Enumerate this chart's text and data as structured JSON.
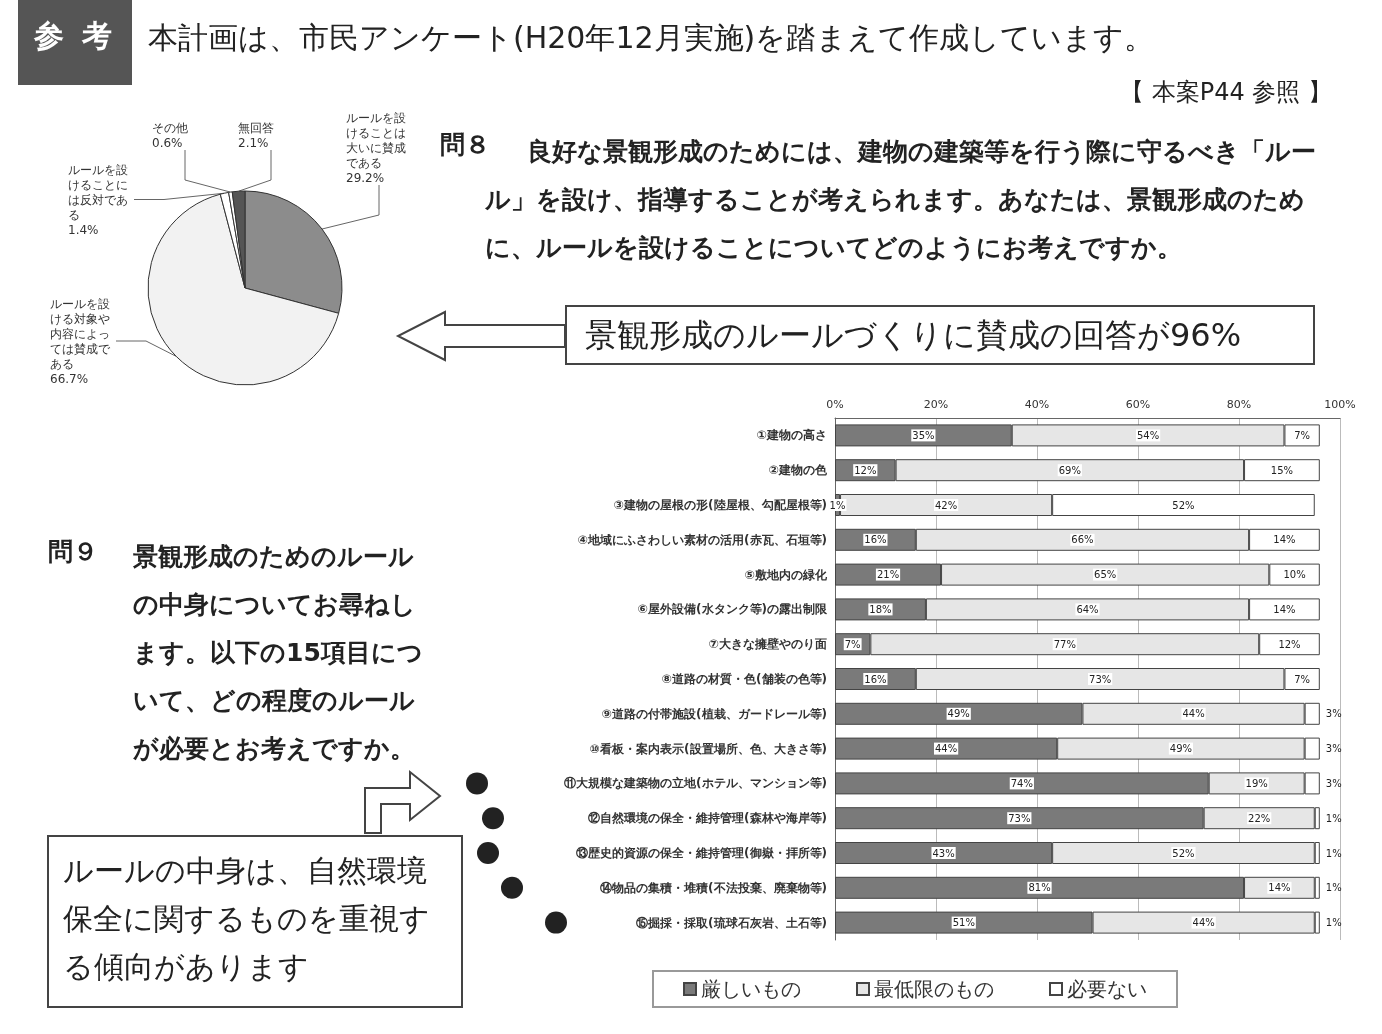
{
  "chart_data": [
    {
      "type": "pie",
      "categories": [
        "ルールを設けることは大いに賛成である",
        "ルールを設ける対象や内容によっては賛成である",
        "ルールを設けることには反対である",
        "その他",
        "無回答"
      ],
      "values": [
        29.2,
        66.7,
        1.4,
        0.6,
        2.1
      ],
      "value_labels": [
        "29.2%",
        "66.7%",
        "1.4%",
        "0.6%",
        "2.1%"
      ],
      "colors": [
        "#8c8c8c",
        "#f2f2f2",
        "#ffffff",
        "#ffffff",
        "#555555"
      ],
      "annotations": [
        "参 考",
        "本計画は、市民アンケート(H20年12月実施)を踏まえて作成しています。",
        "【 本案P44 参照 】",
        "問８",
        "良好な景観形成のためには、建物の建築等を行う際に守るべき「ルール」を設け、指導することが考えられます。あなたは、景観形成のために、ルールを設けることについてどのようにお考えですか。",
        "景観形成のルールづくりに賛成の回答が96%"
      ]
    },
    {
      "type": "bar",
      "orientation": "horizontal",
      "stacked": true,
      "categories": [
        "①建物の高さ",
        "②建物の色",
        "③建物の屋根の形(陸屋根、勾配屋根等)",
        "④地域にふさわしい素材の活用(赤瓦、石垣等)",
        "⑤敷地内の緑化",
        "⑥屋外設備(水タンク等)の露出制限",
        "⑦大きな擁壁やのり面",
        "⑧道路の材質・色(舗装の色等)",
        "⑨道路の付帯施設(植栽、ガードレール等)",
        "⑩看板・案内表示(設置場所、色、大きさ等)",
        "⑪大規模な建築物の立地(ホテル、マンション等)",
        "⑫自然環境の保全・維持管理(森林や海岸等)",
        "⑬歴史的資源の保全・維持管理(御嶽・拝所等)",
        "⑭物品の集積・堆積(不法投棄、廃棄物等)",
        "⑮掘採・採取(琉球石灰岩、土石等)"
      ],
      "series": [
        {
          "name": "厳しいもの",
          "color": "#7a7a7a",
          "values": [
            35,
            12,
            1,
            16,
            21,
            18,
            7,
            16,
            49,
            44,
            74,
            73,
            43,
            81,
            51
          ],
          "value_labels": [
            "35%",
            "12%",
            "1%",
            "16%",
            "21%",
            "18%",
            "7%",
            "16%",
            "49%",
            "44%",
            "74%",
            "73%",
            "43%",
            "81%",
            "51%"
          ]
        },
        {
          "name": "最低限のもの",
          "color": "#e6e6e6",
          "values": [
            54,
            69,
            42,
            66,
            65,
            64,
            77,
            73,
            44,
            49,
            19,
            22,
            52,
            14,
            44
          ],
          "value_labels": [
            "54%",
            "69%",
            "42%",
            "66%",
            "65%",
            "64%",
            "77%",
            "73%",
            "44%",
            "49%",
            "19%",
            "22%",
            "52%",
            "14%",
            "44%"
          ]
        },
        {
          "name": "必要ない",
          "color": "#ffffff",
          "values": [
            7,
            15,
            52,
            14,
            10,
            14,
            12,
            7,
            3,
            3,
            3,
            1,
            1,
            1,
            1
          ],
          "value_labels": [
            "7%",
            "15%",
            "52%",
            "14%",
            "10%",
            "14%",
            "12%",
            "7%",
            "3%",
            "3%",
            "3%",
            "1%",
            "1%",
            "1%",
            "1%"
          ]
        }
      ],
      "xlim": [
        0,
        100
      ],
      "xticks": [
        {
          "value": 0,
          "label": "0%"
        },
        {
          "value": 20,
          "label": "20%"
        },
        {
          "value": 40,
          "label": "40%"
        },
        {
          "value": 60,
          "label": "60%"
        },
        {
          "value": 80,
          "label": "80%"
        },
        {
          "value": 100,
          "label": "100%"
        }
      ],
      "grid": "x",
      "legend": "bottom",
      "annotations": [
        "問９",
        "景観形成のためのルールの中身についてお尋ねします。以下の15項目について、どの程度のルールが必要とお考えですか。",
        "ルールの中身は、自然環境保全に関するものを重視する傾向があります"
      ]
    }
  ]
}
